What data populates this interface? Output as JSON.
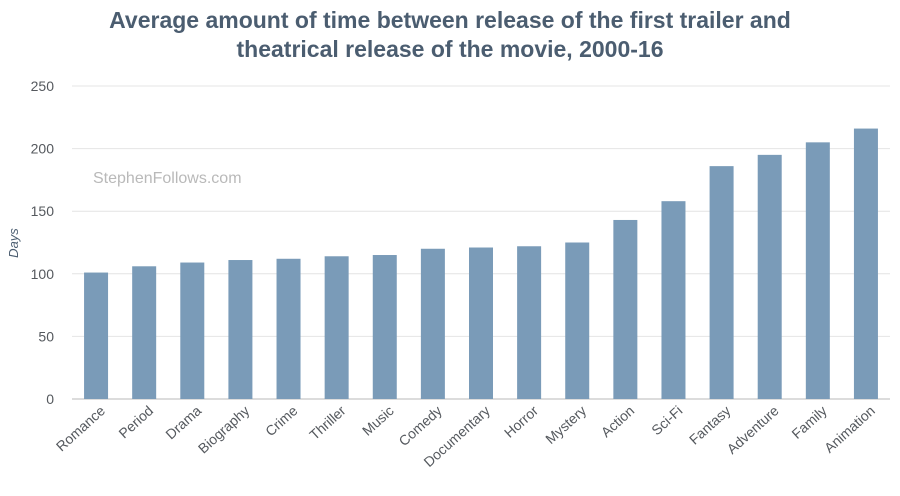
{
  "chart_data": {
    "type": "bar",
    "title_lines": [
      "Average amount of time between release of the first trailer and",
      "theatrical release of the movie, 2000-16"
    ],
    "watermark": "StephenFollows.com",
    "ylabel": "Days",
    "ylim": [
      0,
      250
    ],
    "yticks": [
      0,
      50,
      100,
      150,
      200,
      250
    ],
    "yticks_labels": [
      "0",
      "50",
      "100",
      "150",
      "200",
      "250"
    ],
    "grid": true,
    "categories": [
      "Romance",
      "Period",
      "Drama",
      "Biography",
      "Crime",
      "Thriller",
      "Music",
      "Comedy",
      "Documentary",
      "Horror",
      "Mystery",
      "Action",
      "Sci-Fi",
      "Fantasy",
      "Adventure",
      "Family",
      "Animation"
    ],
    "values": [
      101,
      106,
      109,
      111,
      112,
      114,
      115,
      120,
      121,
      122,
      125,
      143,
      158,
      186,
      195,
      205,
      216
    ],
    "bar_color": "#7a9bb8"
  }
}
